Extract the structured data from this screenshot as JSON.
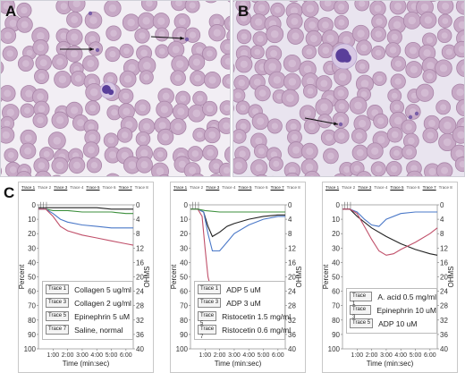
{
  "panels": {
    "a": {
      "letter": "A"
    },
    "b": {
      "letter": "B"
    },
    "c": {
      "letter": "C"
    }
  },
  "colors": {
    "rbc_fill": "#c7a9c6",
    "rbc_edge": "#a985a8",
    "background_a": "#f2eef4",
    "background_b": "#e9e4ef",
    "nucleus": "#5a3f9a",
    "trace_black": "#222222",
    "trace_green": "#3c8f3c",
    "trace_blue": "#4a78c8",
    "trace_red": "#c0506a"
  },
  "trace_header": [
    "Trace 1",
    "Trace 2",
    "Trace 3",
    "Trace 4",
    "Trace 5",
    "Trace 6",
    "Trace 7",
    "Trace 8"
  ],
  "axes": {
    "left_ticks": [
      "0",
      "10",
      "20",
      "30",
      "40",
      "50",
      "60",
      "70",
      "80",
      "90",
      "100"
    ],
    "right_ticks": [
      "0",
      "4",
      "8",
      "12",
      "16",
      "20",
      "24",
      "28",
      "32",
      "36",
      "40"
    ],
    "x_ticks": [
      "1:00",
      "2:00",
      "3:00",
      "4:00",
      "5:00",
      "6:00"
    ],
    "left_label": "Percent",
    "right_label": "OHMS",
    "x_label": "Time (min:sec)"
  },
  "charts": [
    {
      "legend": [
        {
          "chip": "Trace 1",
          "label": "Collagen 5 ug/ml"
        },
        {
          "chip": "Trace 3",
          "label": "Collagen 2 ug/ml"
        },
        {
          "chip": "Trace 5",
          "label": "Epinephrin 5 uM"
        },
        {
          "chip": "Trace 7",
          "label": "Saline, normal"
        }
      ]
    },
    {
      "legend": [
        {
          "chip": "Trace 1",
          "label": "ADP 5 uM"
        },
        {
          "chip": "Trace 3",
          "label": "ADP 3 uM"
        },
        {
          "chip": "Trace 5",
          "label": "Ristocetin 1.5 mg/ml"
        },
        {
          "chip": "Trace 7",
          "label": "Ristocetin 0.6 mg/ml"
        }
      ]
    },
    {
      "legend": [
        {
          "chip": "Trace 1",
          "label": "A. acid 0.5 mg/ml"
        },
        {
          "chip": "Trace 3",
          "label": "Epinephrin 10 uM"
        },
        {
          "chip": "Trace 5",
          "label": "ADP 10 uM"
        }
      ]
    }
  ],
  "chart_data": [
    {
      "type": "line",
      "xlabel": "Time (min:sec)",
      "ylabel": "Percent",
      "ylabel_right": "OHMS",
      "x_ticks": [
        "1:00",
        "2:00",
        "3:00",
        "4:00",
        "5:00",
        "6:00"
      ],
      "ylim": [
        0,
        100
      ],
      "ylim_right": [
        0,
        40
      ],
      "y_inverted": true,
      "x_domain_min": [
        0,
        6.5
      ],
      "series": [
        {
          "name": "Collagen 5 ug/ml",
          "color": "#3c8f3c",
          "x": [
            0,
            0.5,
            1,
            2,
            3,
            4,
            5,
            6,
            6.5
          ],
          "y": [
            3,
            3,
            4,
            4,
            5,
            5,
            5,
            6,
            6
          ]
        },
        {
          "name": "Collagen 2 ug/ml",
          "color": "#4a78c8",
          "x": [
            0,
            0.5,
            1,
            1.5,
            2,
            3,
            4,
            5,
            6,
            6.5
          ],
          "y": [
            3,
            3,
            6,
            10,
            12,
            14,
            15,
            16,
            16,
            16
          ]
        },
        {
          "name": "Epinephrin 5 uM",
          "color": "#c0506a",
          "x": [
            0,
            0.5,
            1,
            1.5,
            2,
            3,
            4,
            5,
            6,
            6.5
          ],
          "y": [
            3,
            3,
            8,
            15,
            18,
            21,
            23,
            25,
            27,
            28
          ]
        },
        {
          "name": "Saline, normal",
          "color": "#222222",
          "x": [
            0,
            0.5,
            1,
            2,
            3,
            4,
            5,
            6,
            6.5
          ],
          "y": [
            2,
            2,
            2,
            2,
            2,
            2,
            3,
            3,
            3
          ]
        }
      ]
    },
    {
      "type": "line",
      "xlabel": "Time (min:sec)",
      "ylabel": "Percent",
      "ylabel_right": "OHMS",
      "x_ticks": [
        "1:00",
        "2:00",
        "3:00",
        "4:00",
        "5:00",
        "6:00"
      ],
      "ylim": [
        0,
        100
      ],
      "ylim_right": [
        0,
        40
      ],
      "y_inverted": true,
      "x_domain_min": [
        0,
        6.5
      ],
      "series": [
        {
          "name": "ADP 5 uM",
          "color": "#222222",
          "x": [
            0,
            0.5,
            0.9,
            1.2,
            1.5,
            2,
            2.5,
            3,
            4,
            5,
            6,
            6.5
          ],
          "y": [
            3,
            3,
            5,
            15,
            22,
            19,
            15,
            13,
            10,
            8,
            7,
            7
          ]
        },
        {
          "name": "ADP 3 uM",
          "color": "#4a78c8",
          "x": [
            0,
            0.5,
            0.9,
            1.2,
            1.5,
            2,
            2.5,
            3,
            4,
            5,
            6,
            6.5
          ],
          "y": [
            3,
            3,
            5,
            20,
            32,
            32,
            26,
            20,
            14,
            10,
            8,
            8
          ]
        },
        {
          "name": "Ristocetin 1.5 mg/ml",
          "color": "#c0506a",
          "x": [
            0,
            0.5,
            0.8,
            1,
            1.2,
            1.5,
            2,
            2.5,
            3,
            4,
            5,
            6,
            6.5
          ],
          "y": [
            3,
            3,
            8,
            30,
            50,
            62,
            68,
            71,
            72,
            73,
            74,
            74,
            74
          ]
        },
        {
          "name": "Ristocetin 0.6 mg/ml",
          "color": "#3c8f3c",
          "x": [
            0,
            0.5,
            1,
            2,
            3,
            4,
            5,
            6,
            6.5
          ],
          "y": [
            3,
            3,
            4,
            5,
            5,
            5,
            5,
            5,
            5
          ]
        }
      ]
    },
    {
      "type": "line",
      "xlabel": "Time (min:sec)",
      "ylabel": "Percent",
      "ylabel_right": "OHMS",
      "x_ticks": [
        "1:00",
        "2:00",
        "3:00",
        "4:00",
        "5:00",
        "6:00"
      ],
      "ylim": [
        0,
        100
      ],
      "ylim_right": [
        0,
        40
      ],
      "y_inverted": true,
      "x_domain_min": [
        0,
        6.5
      ],
      "series": [
        {
          "name": "A. acid 0.5 mg/ml",
          "color": "#4a78c8",
          "x": [
            0,
            0.5,
            1,
            1.5,
            2,
            2.5,
            3,
            4,
            5,
            6,
            6.5
          ],
          "y": [
            3,
            3,
            5,
            10,
            14,
            15,
            10,
            6,
            5,
            5,
            5
          ]
        },
        {
          "name": "Epinephrin 10 uM",
          "color": "#222222",
          "x": [
            0,
            0.5,
            1,
            2,
            3,
            4,
            5,
            6,
            6.5
          ],
          "y": [
            3,
            3,
            8,
            16,
            22,
            27,
            31,
            34,
            35
          ]
        },
        {
          "name": "ADP 10 uM",
          "color": "#c0506a",
          "x": [
            0,
            0.5,
            1,
            1.5,
            2,
            2.5,
            3,
            3.5,
            4,
            5,
            6,
            6.5
          ],
          "y": [
            3,
            3,
            6,
            15,
            24,
            32,
            35,
            34,
            31,
            26,
            20,
            16
          ]
        }
      ]
    }
  ]
}
